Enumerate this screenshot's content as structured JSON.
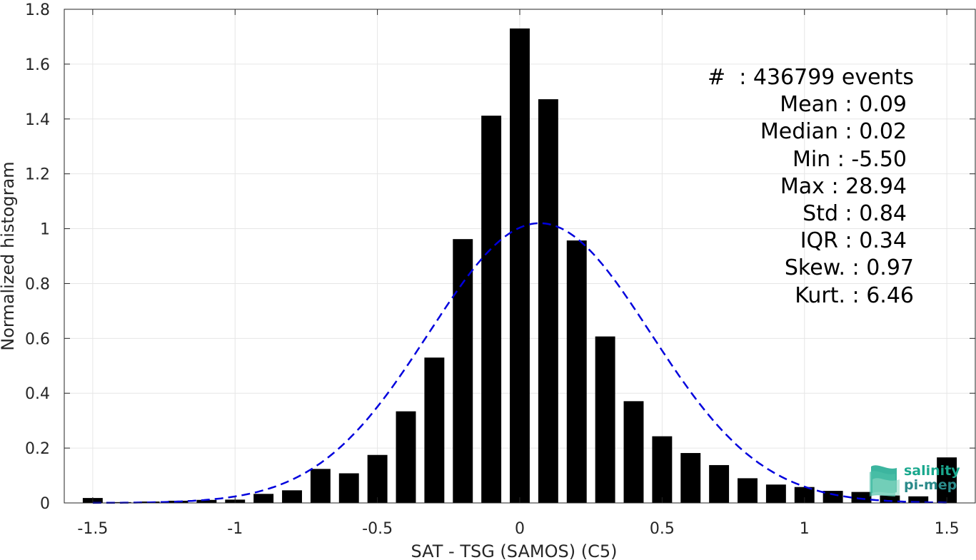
{
  "chart_data": {
    "type": "bar",
    "xlabel": "SAT - TSG (SAMOS) (C5)",
    "ylabel": "Normalized histogram",
    "xlim": [
      -1.6,
      1.6
    ],
    "ylim": [
      0,
      1.8
    ],
    "xticks": [
      -1.5,
      -1,
      -0.5,
      0,
      0.5,
      1,
      1.5
    ],
    "xtick_labels": [
      "-1.5",
      "-1",
      "-0.5",
      "0",
      "0.5",
      "1",
      "1.5"
    ],
    "yticks": [
      0,
      0.2,
      0.4,
      0.6,
      0.8,
      1,
      1.2,
      1.4,
      1.6,
      1.8
    ],
    "ytick_labels": [
      "0",
      "0.2",
      "0.4",
      "0.6",
      "0.8",
      "1",
      "1.2",
      "1.4",
      "1.6",
      "1.8"
    ],
    "grid": true,
    "bin_centers": [
      -1.5,
      -1.4,
      -1.3,
      -1.2,
      -1.1,
      -1.0,
      -0.9,
      -0.8,
      -0.7,
      -0.6,
      -0.5,
      -0.4,
      -0.3,
      -0.2,
      -0.1,
      0.0,
      0.1,
      0.2,
      0.3,
      0.4,
      0.5,
      0.6,
      0.7,
      0.8,
      0.9,
      1.0,
      1.1,
      1.2,
      1.3,
      1.4,
      1.5
    ],
    "values": [
      0.018,
      0.003,
      0.005,
      0.008,
      0.011,
      0.012,
      0.033,
      0.046,
      0.124,
      0.108,
      0.175,
      0.334,
      0.53,
      0.962,
      1.412,
      1.73,
      1.472,
      0.957,
      0.607,
      0.371,
      0.243,
      0.182,
      0.138,
      0.09,
      0.067,
      0.058,
      0.044,
      0.04,
      0.027,
      0.024,
      0.166
    ],
    "bar_color": "#000000",
    "fit_curve": {
      "style": "dashed",
      "color": "#0000dd",
      "mean": 0.07,
      "sigma": 0.39,
      "peak": 1.02,
      "x_range": [
        -1.5,
        1.5
      ]
    },
    "stats": [
      {
        "label": "#  ",
        "value": ": 436799 events"
      },
      {
        "label": "Mean ",
        "value": ": 0.09"
      },
      {
        "label": "Median ",
        "value": ": 0.02"
      },
      {
        "label": "Min ",
        "value": ": -5.50"
      },
      {
        "label": "Max ",
        "value": ": 28.94"
      },
      {
        "label": "Std ",
        "value": ": 0.84"
      },
      {
        "label": "IQR ",
        "value": ": 0.34"
      },
      {
        "label": "Skew. ",
        "value": ": 0.97"
      },
      {
        "label": "Kurt. ",
        "value": ": 6.46"
      }
    ]
  },
  "logo": {
    "line1": "salinity",
    "line2": "pi-mep",
    "color1": "#1aa88e",
    "color2": "#2b8a8a"
  }
}
